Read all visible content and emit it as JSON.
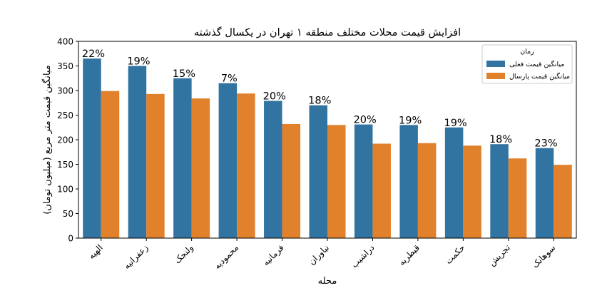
{
  "chart_data": {
    "type": "bar",
    "title": "افزایش قیمت محلات مختلف منطقه ۱ تهران در یکسال گذشته",
    "xlabel": "محله",
    "ylabel": "میانگین قیمت متر مربع (میلیون تومان)",
    "ylim": [
      0,
      400
    ],
    "yticks": [
      0,
      50,
      100,
      150,
      200,
      250,
      300,
      350,
      400
    ],
    "categories": [
      "الهیه",
      "زعفرانیه",
      "ولنجک",
      "محمودیه",
      "فرمانیه",
      "نیاوران",
      "دراشیب",
      "قیطریه",
      "حکمت",
      "تجریش",
      "سوهانک"
    ],
    "series": [
      {
        "name": "میانگین قیمت فعلی",
        "color": "#3274a1",
        "values": [
          365,
          350,
          325,
          315,
          279,
          270,
          231,
          230,
          225,
          191,
          183
        ]
      },
      {
        "name": "میانگین قیمت پارسال",
        "color": "#e1812c",
        "values": [
          299,
          293,
          284,
          294,
          232,
          230,
          192,
          193,
          188,
          162,
          149
        ]
      }
    ],
    "annotations": [
      "22%",
      "19%",
      "15%",
      "7%",
      "20%",
      "18%",
      "20%",
      "19%",
      "19%",
      "18%",
      "23%"
    ],
    "legend": {
      "title": "زمان",
      "placement": "top-right"
    },
    "grid": false
  }
}
